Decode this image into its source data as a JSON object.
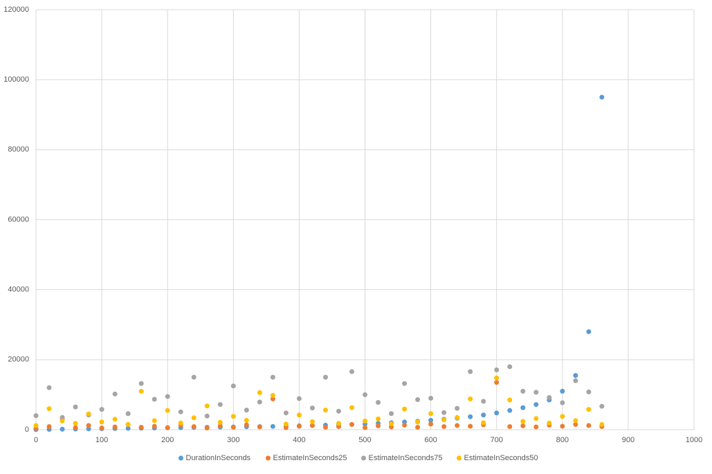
{
  "chart_data": {
    "type": "scatter",
    "x": [
      0,
      20,
      40,
      60,
      80,
      100,
      120,
      140,
      160,
      180,
      200,
      220,
      240,
      260,
      280,
      300,
      320,
      340,
      360,
      380,
      400,
      420,
      440,
      460,
      480,
      500,
      520,
      540,
      560,
      580,
      600,
      620,
      640,
      660,
      680,
      700,
      720,
      740,
      760,
      780,
      800,
      820,
      840,
      860
    ],
    "series": [
      {
        "name": "DurationInSeconds",
        "color": "#5b9bd5",
        "values": [
          50,
          100,
          150,
          200,
          250,
          300,
          350,
          400,
          450,
          500,
          550,
          600,
          650,
          700,
          750,
          800,
          850,
          900,
          950,
          1000,
          1100,
          1200,
          1300,
          1400,
          1500,
          1600,
          1800,
          2000,
          2200,
          2400,
          2700,
          3000,
          3300,
          3700,
          4200,
          4800,
          5500,
          6300,
          7200,
          8500,
          11000,
          15500,
          28000,
          95000
        ]
      },
      {
        "name": "EstimateInSeconds25",
        "color": "#ed7d31",
        "values": [
          400,
          900,
          3200,
          600,
          1200,
          500,
          800,
          1500,
          700,
          1000,
          600,
          1300,
          900,
          500,
          1100,
          700,
          1400,
          800,
          8800,
          600,
          1000,
          1200,
          700,
          900,
          1500,
          600,
          1100,
          800,
          1300,
          700,
          1600,
          900,
          1200,
          1000,
          1400,
          13500,
          900,
          1100,
          800,
          1300,
          1000,
          1500,
          1200,
          900
        ]
      },
      {
        "name": "EstimateInSeconds75",
        "color": "#a5a5a5",
        "values": [
          4000,
          12000,
          3500,
          6500,
          4200,
          5800,
          10200,
          4600,
          13200,
          8700,
          9500,
          5100,
          15000,
          3900,
          7200,
          12500,
          5600,
          7900,
          15000,
          4800,
          8900,
          6200,
          15000,
          5300,
          16600,
          10000,
          7800,
          4600,
          13200,
          8600,
          9000,
          4900,
          6100,
          16600,
          8100,
          17100,
          18000,
          11000,
          10700,
          9200,
          7700,
          14000,
          10800,
          6700
        ]
      },
      {
        "name": "EstimateInSeconds50",
        "color": "#ffc000",
        "values": [
          1200,
          6000,
          2500,
          1800,
          4500,
          2200,
          3000,
          1500,
          11000,
          2600,
          5500,
          1900,
          3400,
          6800,
          2100,
          3800,
          2700,
          10600,
          9800,
          1600,
          4200,
          2300,
          5600,
          1800,
          6300,
          2500,
          3100,
          1700,
          5900,
          2200,
          4600,
          2800,
          3500,
          8800,
          2000,
          14800,
          8500,
          2400,
          3200,
          1900,
          3800,
          2600,
          5800,
          1500
        ]
      }
    ],
    "xlim": [
      0,
      1000
    ],
    "xticks": [
      0,
      100,
      200,
      300,
      400,
      500,
      600,
      700,
      800,
      900,
      1000
    ],
    "ylim": [
      0,
      120000
    ],
    "yticks": [
      0,
      20000,
      40000,
      60000,
      80000,
      100000,
      120000
    ],
    "grid": true,
    "legend": "bottom"
  }
}
